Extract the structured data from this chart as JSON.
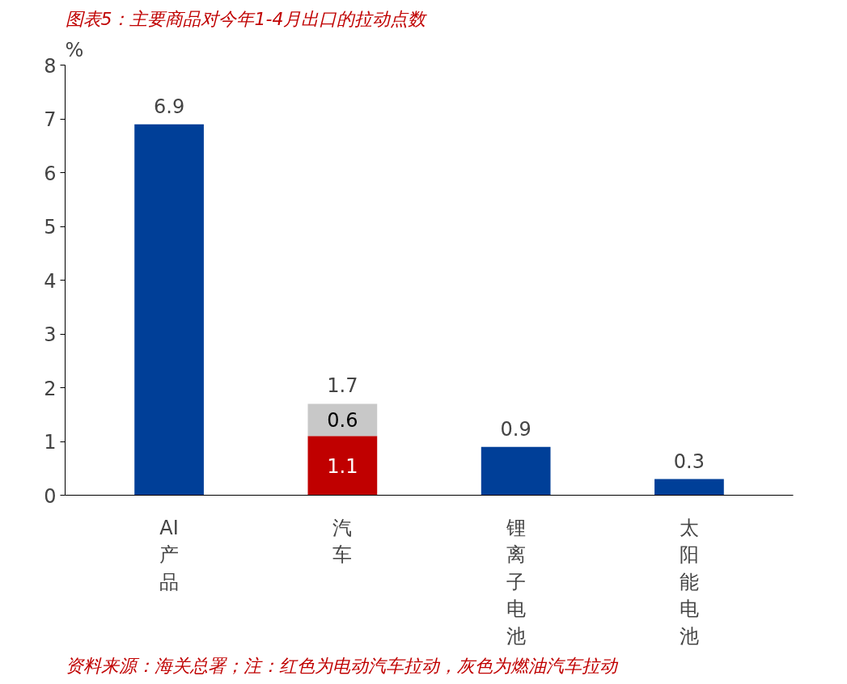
{
  "chart_data": {
    "type": "bar",
    "stacked": true,
    "title": "图表5：主要商品对今年1-4月出口的拉动点数",
    "ylabel": "%",
    "categories": [
      "AI产品",
      "汽车",
      "锂离子电池",
      "太阳能电池"
    ],
    "series": [
      {
        "colors": [
          "#003f98",
          "#c00000",
          "#003f98",
          "#003f98"
        ],
        "values": [
          6.9,
          1.1,
          0.9,
          0.3
        ],
        "value_labels": [
          "6.9",
          "1.1",
          "0.9",
          "0.3"
        ]
      },
      {
        "colors": [
          null,
          "#c8c8c8",
          null,
          null
        ],
        "values": [
          null,
          0.6,
          null,
          null
        ],
        "value_labels": [
          null,
          "0.6",
          null,
          null
        ]
      }
    ],
    "totals": [
      null,
      "1.7",
      null,
      null
    ],
    "ylim": [
      0,
      8
    ],
    "yticks": [
      0,
      1,
      2,
      3,
      4,
      5,
      6,
      7,
      8
    ],
    "grid": false,
    "annotations": [
      "资料来源：海关总署；注：红色为电动汽车拉动，灰色为燃油汽车拉动"
    ]
  }
}
